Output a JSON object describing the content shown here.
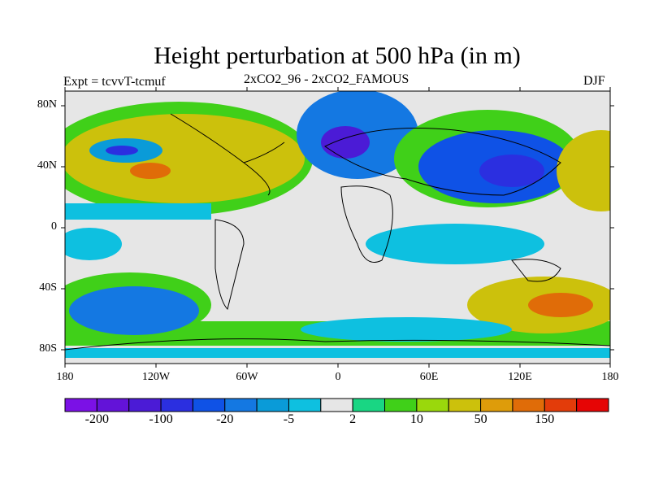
{
  "title": "Height perturbation at 500 hPa (in m)",
  "left_label": "Expt = tcvvT-tcmuf",
  "center_label": "2xCO2_96 - 2xCO2_FAMOUS",
  "right_label": "DJF",
  "lat_ticks": [
    "80N",
    "40N",
    "0",
    "40S",
    "80S"
  ],
  "lon_ticks": [
    "180",
    "120W",
    "60W",
    "0",
    "60E",
    "120E",
    "180"
  ],
  "colorbar": {
    "colors": [
      "#7b11e6",
      "#6313d8",
      "#4b1bd6",
      "#2b2fe0",
      "#0f52e6",
      "#1478e2",
      "#0a9bd8",
      "#0ec0e0",
      "#e6e6e6",
      "#19d683",
      "#40d019",
      "#9ad80c",
      "#ccc10c",
      "#de9c0a",
      "#e06c08",
      "#e33c0a",
      "#e60505"
    ],
    "labels": [
      "-200",
      "-100",
      "-20",
      "-5",
      "2",
      "10",
      "50",
      "150"
    ]
  },
  "map": {
    "background": "#e6e6e6",
    "regions": [
      {
        "name": "green-band-north-pacific",
        "color": "#40d019"
      },
      {
        "name": "orange-blob-north-pacific",
        "color": "#e06c08"
      },
      {
        "name": "yellow-blob-north-pacific",
        "color": "#ccc10c"
      },
      {
        "name": "blue-ring-north-pacific",
        "color": "#0a9bd8"
      },
      {
        "name": "blue-core-north-pacific",
        "color": "#2b2fe0"
      },
      {
        "name": "blue-trough-europe",
        "color": "#1478e2"
      },
      {
        "name": "deep-blue-trough-europe",
        "color": "#4b1bd6"
      },
      {
        "name": "blue-low-asia",
        "color": "#0f52e6"
      },
      {
        "name": "blue-core-asia",
        "color": "#2b2fe0"
      },
      {
        "name": "yellow-west-pacific",
        "color": "#ccc10c"
      },
      {
        "name": "cyan-band-tropics",
        "color": "#0ec0e0"
      },
      {
        "name": "green-band-south-pacific",
        "color": "#40d019"
      },
      {
        "name": "blue-low-south-pacific",
        "color": "#1478e2"
      },
      {
        "name": "yellow-high-south-indian",
        "color": "#ccc10c"
      },
      {
        "name": "orange-high-south-pacific",
        "color": "#e06c08"
      },
      {
        "name": "cyan-band-antarctica",
        "color": "#0ec0e0"
      }
    ]
  }
}
